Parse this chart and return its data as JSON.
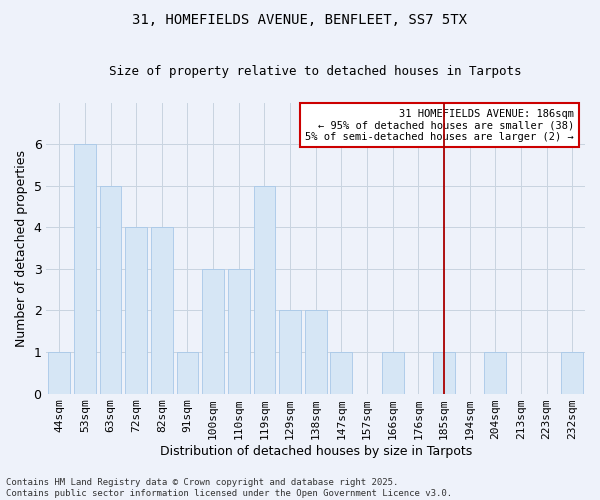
{
  "title_line1": "31, HOMEFIELDS AVENUE, BENFLEET, SS7 5TX",
  "title_line2": "Size of property relative to detached houses in Tarpots",
  "xlabel": "Distribution of detached houses by size in Tarpots",
  "ylabel": "Number of detached properties",
  "categories": [
    "44sqm",
    "53sqm",
    "63sqm",
    "72sqm",
    "82sqm",
    "91sqm",
    "100sqm",
    "110sqm",
    "119sqm",
    "129sqm",
    "138sqm",
    "147sqm",
    "157sqm",
    "166sqm",
    "176sqm",
    "185sqm",
    "194sqm",
    "204sqm",
    "213sqm",
    "223sqm",
    "232sqm"
  ],
  "values": [
    1,
    6,
    5,
    4,
    4,
    1,
    3,
    3,
    5,
    2,
    2,
    1,
    0,
    1,
    0,
    1,
    0,
    1,
    0,
    0,
    1
  ],
  "bar_color": "#d6e6f5",
  "bar_edgecolor": "#a8c8e8",
  "grid_color": "#c8d4e0",
  "vline_x": 15,
  "vline_color": "#aa0000",
  "annotation_text": "31 HOMEFIELDS AVENUE: 186sqm\n← 95% of detached houses are smaller (38)\n5% of semi-detached houses are larger (2) →",
  "annotation_box_color": "#cc0000",
  "ylim": [
    0,
    7
  ],
  "yticks": [
    0,
    1,
    2,
    3,
    4,
    5,
    6
  ],
  "fig_bg_color": "#eef2fa",
  "plot_bg_color": "#eef2fa",
  "title_fontsize": 10,
  "subtitle_fontsize": 9,
  "axis_fontsize": 8,
  "tick_fontsize": 8,
  "footnote_fontsize": 6.5,
  "footnote": "Contains HM Land Registry data © Crown copyright and database right 2025.\nContains public sector information licensed under the Open Government Licence v3.0."
}
